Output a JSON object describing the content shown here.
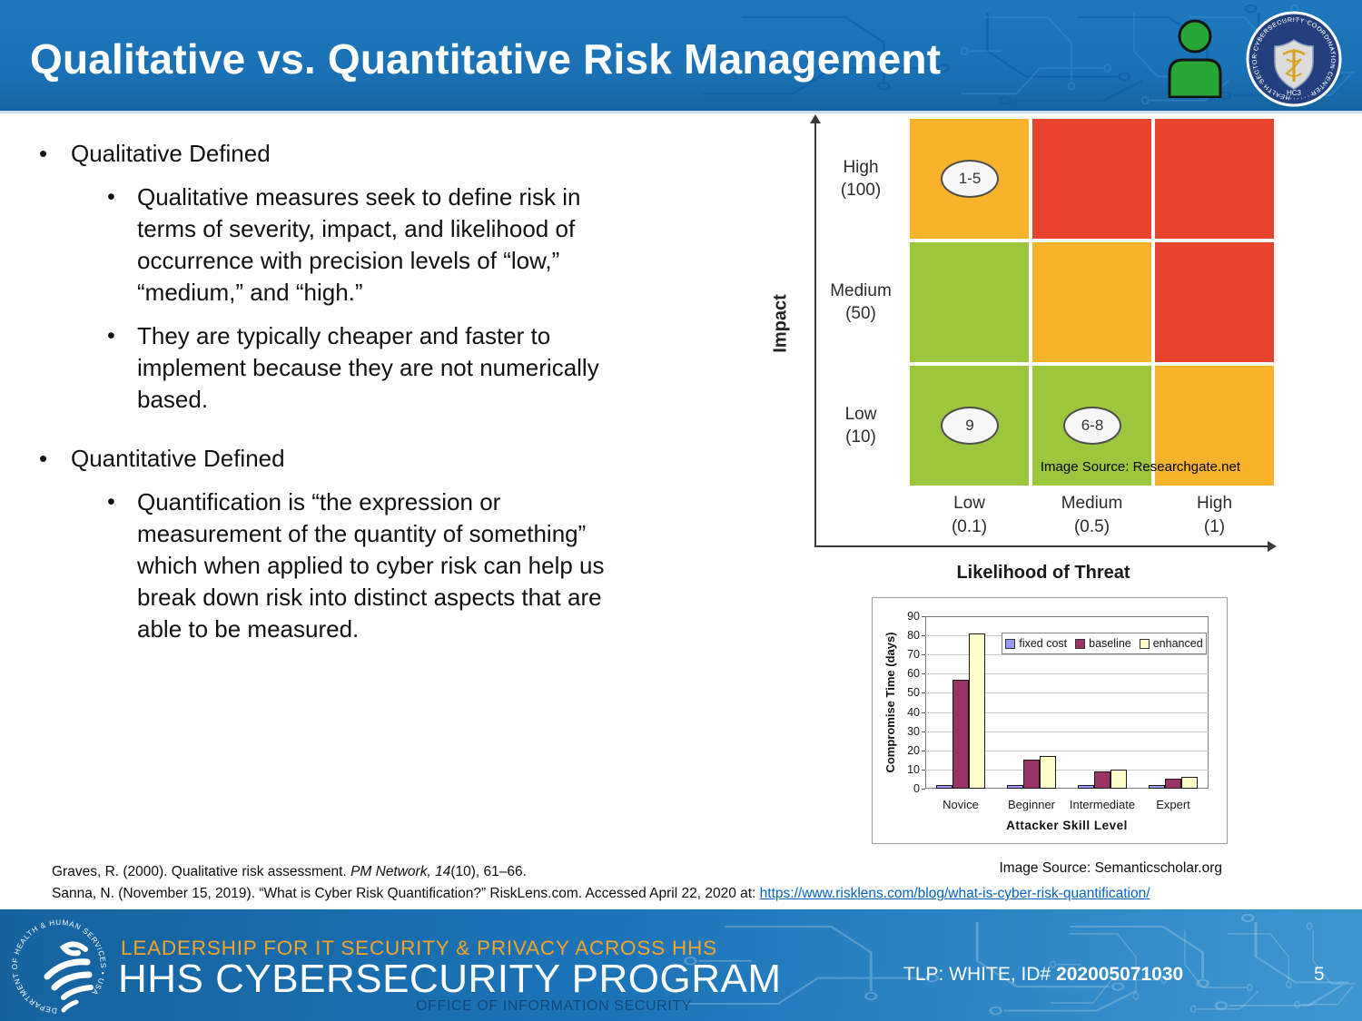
{
  "header": {
    "title": "Qualitative vs. Quantitative Risk Management",
    "seal_ring_text": "HEALTH SECTOR CYBERSECURITY COORDINATION CENTER",
    "seal_label": "HC3"
  },
  "icons": {
    "person": "person-icon",
    "seal": "hc3-seal-icon",
    "hhs_logo": "hhs-eagle-logo-icon"
  },
  "bullets": {
    "b1_label": "Qualitative Defined",
    "b1_sub1": "Qualitative measures seek to define risk in terms of severity, impact, and likelihood of occurrence with precision levels of “low,” “medium,” and “high.”",
    "b1_sub2": "They are typically cheaper and faster to implement because they are not numerically based.",
    "b2_label": "Quantitative Defined",
    "b2_sub1": "Quantification is “the expression or measurement of the quantity of something” which when applied to cyber risk can help us break down risk into distinct aspects that are able to be measured."
  },
  "chart_data": [
    {
      "type": "heatmap",
      "xlabel": "Likelihood of Threat",
      "ylabel": "Impact",
      "rows": [
        [
          "High",
          "(100)"
        ],
        [
          "Medium",
          "(50)"
        ],
        [
          "Low",
          "(10)"
        ]
      ],
      "cols": [
        [
          "Low",
          "(0.1)"
        ],
        [
          "Medium",
          "(0.5)"
        ],
        [
          "High",
          "(1)"
        ]
      ],
      "cell_colors": [
        [
          "#F6B32B",
          "#E8432C",
          "#E8432C"
        ],
        [
          "#9CC63D",
          "#F6B32B",
          "#E8432C"
        ],
        [
          "#9CC63D",
          "#9CC63D",
          "#F6B32B"
        ]
      ],
      "annotations": [
        {
          "row": 0,
          "col": 0,
          "label": "1-5"
        },
        {
          "row": 2,
          "col": 0,
          "label": "9"
        },
        {
          "row": 2,
          "col": 1,
          "label": "6-8"
        }
      ],
      "image_source": "Image Source: Researchgate.net"
    },
    {
      "type": "bar",
      "categories": [
        "Novice",
        "Beginner",
        "Intermediate",
        "Expert"
      ],
      "series": [
        {
          "name": "fixed cost",
          "color": "#9999FF",
          "values": [
            2,
            2,
            2,
            2
          ]
        },
        {
          "name": "baseline",
          "color": "#993366",
          "values": [
            57,
            15,
            9,
            5
          ]
        },
        {
          "name": "enhanced",
          "color": "#FFFFCC",
          "values": [
            81,
            17,
            10,
            6
          ]
        }
      ],
      "xlabel": "Attacker Skill Level",
      "ylabel": "Compromise Time (days)",
      "ylim": [
        0,
        90
      ],
      "ytick_step": 10,
      "grid": true,
      "legend_position": "top-inside"
    }
  ],
  "citations": {
    "line1_pre": "Graves, R. (2000). Qualitative risk assessment. ",
    "line1_italic": "PM Network, 14",
    "line1_post": "(10), 61–66.",
    "line2_text": "Sanna, N. (November 15, 2019).  “What is Cyber Risk Quantification?” RiskLens.com. Accessed April 22, 2020 at: ",
    "line2_link": "https://www.risklens.com/blog/what-is-cyber-risk-quantification/",
    "image_source": "Image Source: Semanticscholar.org"
  },
  "footer": {
    "tagline": "LEADERSHIP FOR IT SECURITY & PRIVACY ACROSS HHS",
    "program": "HHS CYBERSECURITY PROGRAM",
    "office": "OFFICE OF INFORMATION SECURITY",
    "hhs_ring_text": "DEPARTMENT OF HEALTH & HUMAN SERVICES • USA",
    "tlp_label": "TLP: WHITE, ID# ",
    "tlp_id": "202005071030",
    "page": "5"
  }
}
